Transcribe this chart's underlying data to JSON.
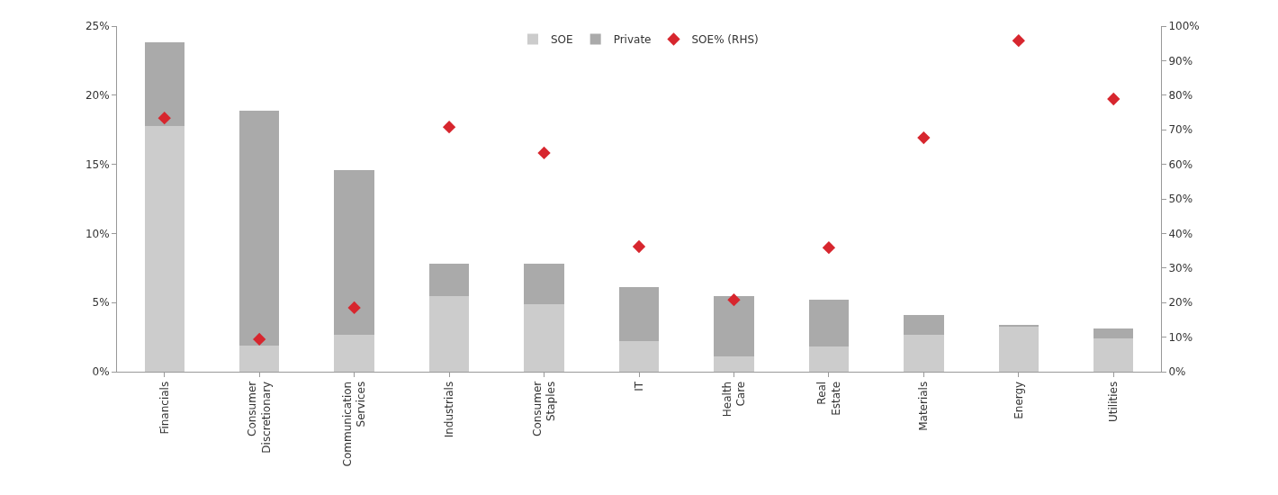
{
  "chart_data": {
    "type": "bar",
    "stacked": true,
    "legend": "top",
    "grid": false,
    "categories": [
      "Financials",
      "Consumer Discretionary",
      "Communication Services",
      "Industrials",
      "Consumer Staples",
      "IT",
      "Health Care",
      "Real Estate",
      "Materials",
      "Energy",
      "Utilities"
    ],
    "series": [
      {
        "name": "SOE",
        "color": "#cccccc",
        "values": [
          17.8,
          1.9,
          2.7,
          5.5,
          4.9,
          2.2,
          1.1,
          1.8,
          2.7,
          3.3,
          2.4
        ]
      },
      {
        "name": "Private",
        "color": "#aaaaaa",
        "values": [
          6.0,
          17.0,
          11.9,
          2.3,
          2.9,
          3.9,
          4.4,
          3.4,
          1.4,
          0.1,
          0.7
        ]
      },
      {
        "name": "SOE% (RHS)",
        "type": "scatter",
        "axis": "y2",
        "marker": "diamond",
        "color": "#d7262e",
        "values": [
          73.4,
          9.4,
          18.5,
          70.8,
          63.3,
          36.2,
          20.8,
          35.9,
          67.7,
          95.8,
          78.9
        ]
      }
    ],
    "ylim": [
      0,
      25
    ],
    "yticks": [
      {
        "value": 0,
        "label": "0%"
      },
      {
        "value": 5,
        "label": "5%"
      },
      {
        "value": 10,
        "label": "10%"
      },
      {
        "value": 15,
        "label": "15%"
      },
      {
        "value": 20,
        "label": "20%"
      },
      {
        "value": 25,
        "label": "25%"
      }
    ],
    "y2lim": [
      0,
      100
    ],
    "y2ticks": [
      {
        "value": 0,
        "label": "0%"
      },
      {
        "value": 10,
        "label": "10%"
      },
      {
        "value": 20,
        "label": "20%"
      },
      {
        "value": 30,
        "label": "30%"
      },
      {
        "value": 40,
        "label": "40%"
      },
      {
        "value": 50,
        "label": "50%"
      },
      {
        "value": 60,
        "label": "60%"
      },
      {
        "value": 70,
        "label": "70%"
      },
      {
        "value": 80,
        "label": "80%"
      },
      {
        "value": 90,
        "label": "90%"
      },
      {
        "value": 100,
        "label": "100%"
      }
    ]
  }
}
